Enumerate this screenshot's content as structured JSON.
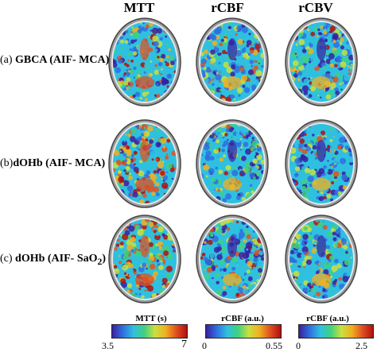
{
  "columns": [
    "MTT",
    "rCBF",
    "rCBV"
  ],
  "rows": [
    {
      "prefix": "(a)",
      "label": "GBCA (AIF- MCA)",
      "sub": ""
    },
    {
      "prefix": "(b)",
      "label": "dOHb (AIF- MCA)",
      "sub": ""
    },
    {
      "prefix": "(c)",
      "label": "dOHb (AIF- SaO",
      "sub": "2",
      "suffix": ")"
    }
  ],
  "colorbars": [
    {
      "title": "MTT (s)",
      "min": "3.5",
      "max": "7"
    },
    {
      "title": "rCBF (a.u.)",
      "min": "0",
      "max": "0.55"
    },
    {
      "title": "rCBF (a.u.)",
      "min": "0",
      "max": "2.5"
    }
  ],
  "colormap": [
    "#3b1fa0",
    "#2f6fe0",
    "#2fc0e0",
    "#40d080",
    "#c8e040",
    "#f0b020",
    "#e05020",
    "#b01010"
  ]
}
